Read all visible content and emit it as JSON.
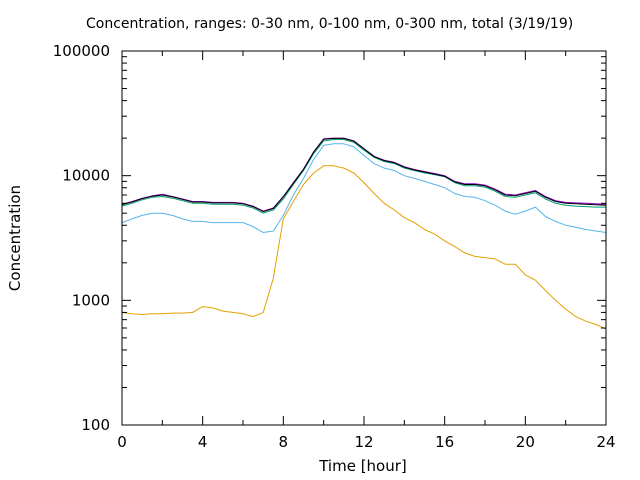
{
  "chart_data": {
    "type": "line",
    "title": "Concentration, ranges: 0-30 nm, 0-100 nm, 0-300 nm, total (3/19/19)",
    "xlabel": "Time [hour]",
    "ylabel": "Concentration",
    "xlim": [
      0,
      24
    ],
    "ylim": [
      100,
      100000
    ],
    "yscale": "log",
    "grid": false,
    "legend": "none",
    "x_ticks": [
      0,
      4,
      8,
      12,
      16,
      20,
      24
    ],
    "x_tick_labels": [
      "0",
      "4",
      "8",
      "12",
      "16",
      "20",
      "24"
    ],
    "y_ticks": [
      100,
      1000,
      10000,
      100000
    ],
    "y_tick_labels": [
      "100",
      "1000",
      "10000",
      "100000"
    ],
    "x": [
      0,
      0.5,
      1,
      1.5,
      2,
      2.5,
      3,
      3.5,
      4,
      4.5,
      5,
      5.5,
      6,
      6.5,
      7,
      7.5,
      8,
      8.5,
      9,
      9.5,
      10,
      10.5,
      11,
      11.5,
      12,
      12.5,
      13,
      13.5,
      14,
      14.5,
      15,
      15.5,
      16,
      16.5,
      17,
      17.5,
      18,
      18.5,
      19,
      19.5,
      20,
      20.5,
      21,
      21.5,
      22,
      22.5,
      23,
      23.5,
      24
    ],
    "series": [
      {
        "color": "#e69f00",
        "values": [
          800,
          780,
          770,
          780,
          780,
          790,
          790,
          800,
          890,
          870,
          820,
          800,
          780,
          740,
          800,
          1500,
          4500,
          6200,
          8500,
          10500,
          12000,
          12000,
          11500,
          10500,
          8800,
          7200,
          6000,
          5300,
          4600,
          4200,
          3700,
          3400,
          3000,
          2700,
          2400,
          2250,
          2200,
          2150,
          1950,
          1950,
          1600,
          1450,
          1200,
          1000,
          850,
          740,
          680,
          640,
          590
        ]
      },
      {
        "color": "#56b4e9",
        "values": [
          4200,
          4500,
          4800,
          5000,
          5000,
          4800,
          4500,
          4300,
          4300,
          4200,
          4200,
          4200,
          4200,
          3900,
          3500,
          3600,
          4800,
          7000,
          9500,
          13500,
          17500,
          18000,
          18000,
          17000,
          14500,
          12500,
          11500,
          11000,
          10000,
          9500,
          9000,
          8500,
          8000,
          7200,
          6800,
          6700,
          6300,
          5800,
          5200,
          4900,
          5200,
          5600,
          4700,
          4300,
          4000,
          3850,
          3700,
          3600,
          3500
        ]
      },
      {
        "color": "#009e73",
        "values": [
          5700,
          6000,
          6400,
          6700,
          6800,
          6600,
          6300,
          6000,
          6000,
          5900,
          5900,
          5900,
          5800,
          5500,
          5000,
          5300,
          6500,
          8500,
          11000,
          15000,
          19000,
          19500,
          19500,
          18500,
          16000,
          14000,
          13000,
          12500,
          11500,
          11000,
          10500,
          10200,
          9800,
          8800,
          8300,
          8300,
          8100,
          7500,
          6800,
          6700,
          7000,
          7300,
          6500,
          6000,
          5800,
          5700,
          5650,
          5600,
          5600
        ]
      },
      {
        "color": "#9400d3",
        "values": [
          5900,
          6200,
          6600,
          6900,
          7100,
          6800,
          6500,
          6200,
          6200,
          6100,
          6100,
          6100,
          6000,
          5700,
          5200,
          5500,
          6800,
          8800,
          11300,
          15500,
          19800,
          20000,
          20000,
          19000,
          16500,
          14300,
          13300,
          12800,
          11800,
          11200,
          10800,
          10400,
          10000,
          9000,
          8600,
          8600,
          8400,
          7800,
          7100,
          7000,
          7300,
          7600,
          6800,
          6300,
          6100,
          6050,
          6000,
          5950,
          5900
        ]
      },
      {
        "color": "#000000",
        "values": [
          5850,
          6150,
          6550,
          6850,
          7000,
          6750,
          6450,
          6150,
          6150,
          6050,
          6050,
          6050,
          5950,
          5650,
          5150,
          5450,
          6750,
          8700,
          11200,
          15400,
          19600,
          19900,
          19900,
          18900,
          16400,
          14200,
          13200,
          12700,
          11700,
          11100,
          10700,
          10300,
          9900,
          8900,
          8500,
          8500,
          8300,
          7700,
          7000,
          6900,
          7200,
          7500,
          6700,
          6200,
          6000,
          5950,
          5900,
          5850,
          5800
        ]
      }
    ]
  }
}
